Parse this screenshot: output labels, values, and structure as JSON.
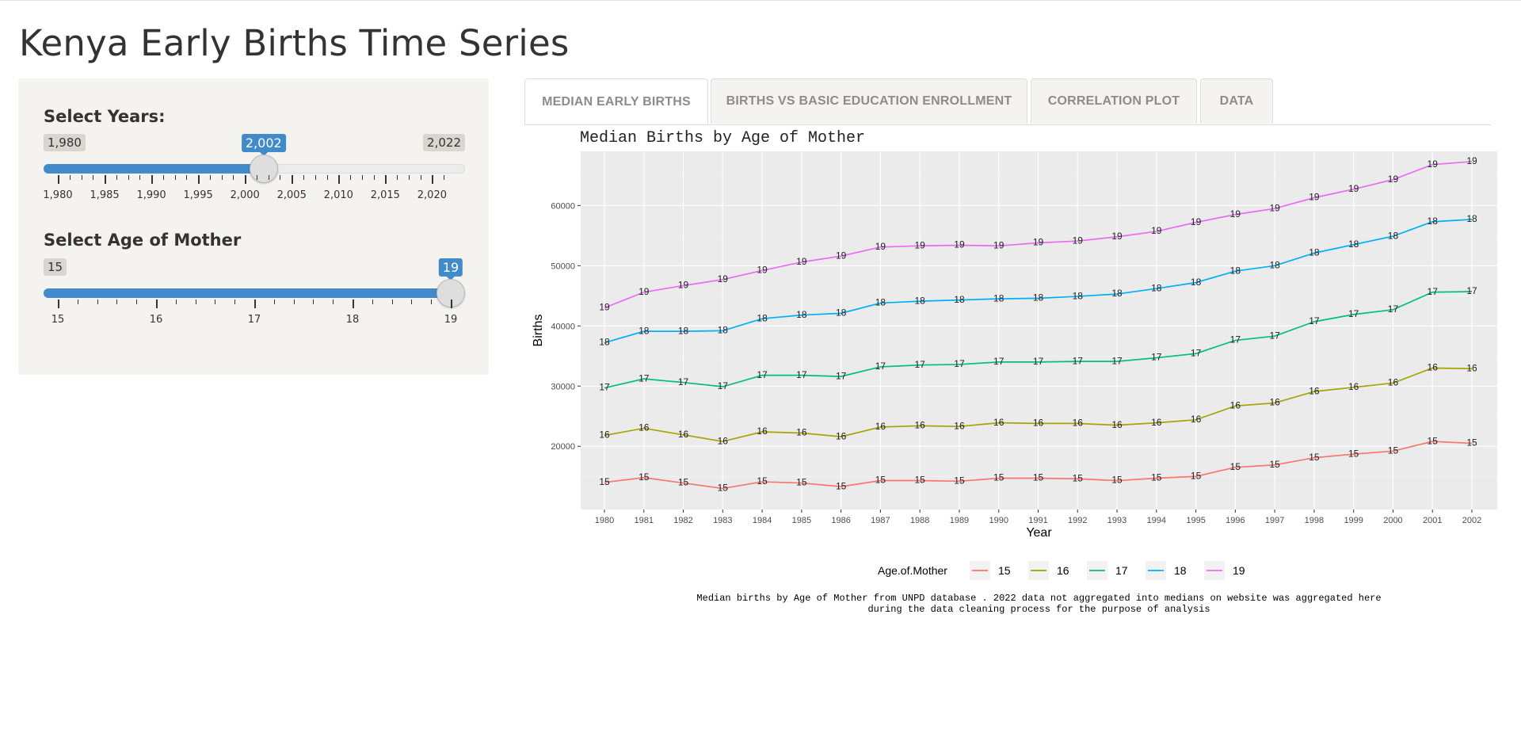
{
  "app": {
    "title": "Kenya Early Births Time Series"
  },
  "sidebar": {
    "years": {
      "label": "Select Years:",
      "min_label": "1,980",
      "max_label": "2,022",
      "value_label": "2,002",
      "min": 1980,
      "max": 2022,
      "value": 2002,
      "tick_labels": [
        "1,980",
        "1,985",
        "1,990",
        "1,995",
        "2,000",
        "2,005",
        "2,010",
        "2,015",
        "2,020"
      ]
    },
    "age": {
      "label": "Select Age of Mother",
      "min_label": "15",
      "value_label": "19",
      "min": 15,
      "max": 19,
      "value": 19,
      "tick_labels": [
        "15",
        "16",
        "17",
        "18",
        "19"
      ]
    }
  },
  "tabs": [
    {
      "label": "MEDIAN EARLY BIRTHS",
      "active": true
    },
    {
      "label": "BIRTHS VS BASIC EDUCATION ENROLLMENT",
      "active": false
    },
    {
      "label": "CORRELATION PLOT",
      "active": false
    },
    {
      "label": "DATA",
      "active": false
    }
  ],
  "colors": {
    "accent": "#428bca",
    "panel_bg": "#f5f3ef",
    "plot_bg": "#ebebeb"
  },
  "chart_data": {
    "type": "line",
    "title": "Median Births by Age of Mother",
    "xlabel": "Year",
    "ylabel": "Births",
    "ylim": [
      9500,
      69000
    ],
    "yticks": [
      20000,
      30000,
      40000,
      50000,
      60000
    ],
    "ytick_labels": [
      "20000",
      "30000",
      "40000",
      "50000",
      "60000"
    ],
    "x": [
      1980,
      1981,
      1982,
      1983,
      1984,
      1985,
      1986,
      1987,
      1988,
      1989,
      1990,
      1991,
      1992,
      1993,
      1994,
      1995,
      1996,
      1997,
      1998,
      1999,
      2000,
      2001,
      2002
    ],
    "grid": true,
    "legend": {
      "title": "Age.of.Mother",
      "position": "bottom"
    },
    "series": [
      {
        "name": "15",
        "color": "#F8766D",
        "values": [
          14000,
          14800,
          13900,
          13000,
          14100,
          13900,
          13300,
          14300,
          14300,
          14200,
          14700,
          14700,
          14600,
          14300,
          14700,
          15000,
          16500,
          16900,
          18100,
          18700,
          19200,
          20800,
          20500
        ]
      },
      {
        "name": "16",
        "color": "#A3A500",
        "values": [
          21800,
          23000,
          21900,
          20800,
          22400,
          22200,
          21600,
          23200,
          23400,
          23300,
          23900,
          23800,
          23800,
          23500,
          23900,
          24400,
          26700,
          27200,
          29100,
          29800,
          30500,
          33000,
          32900
        ]
      },
      {
        "name": "17",
        "color": "#00BF7D",
        "values": [
          29700,
          31200,
          30600,
          29900,
          31800,
          31800,
          31600,
          33200,
          33500,
          33600,
          34000,
          34000,
          34100,
          34100,
          34700,
          35400,
          37600,
          38300,
          40700,
          41900,
          42700,
          45600,
          45700
        ]
      },
      {
        "name": "18",
        "color": "#00B0F6",
        "values": [
          37200,
          39100,
          39100,
          39200,
          41200,
          41800,
          42100,
          43800,
          44100,
          44300,
          44500,
          44600,
          44900,
          45300,
          46200,
          47200,
          49100,
          50000,
          52100,
          53500,
          54900,
          57300,
          57700
        ]
      },
      {
        "name": "19",
        "color": "#E76BF3",
        "values": [
          43000,
          45600,
          46700,
          47700,
          49200,
          50600,
          51600,
          53100,
          53300,
          53400,
          53300,
          53800,
          54100,
          54800,
          55700,
          57200,
          58500,
          59500,
          61300,
          62700,
          64300,
          66800,
          67300
        ]
      }
    ],
    "caption_lines": [
      "Median births by Age of Mother from UNPD database . 2022 data not aggregated into medians on website was aggregated here",
      "during the data cleaning process for the purpose of analysis"
    ]
  }
}
